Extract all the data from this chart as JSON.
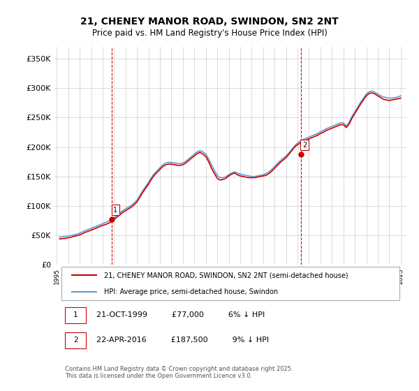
{
  "title": "21, CHENEY MANOR ROAD, SWINDON, SN2 2NT",
  "subtitle": "Price paid vs. HM Land Registry's House Price Index (HPI)",
  "legend_property": "21, CHENEY MANOR ROAD, SWINDON, SN2 2NT (semi-detached house)",
  "legend_hpi": "HPI: Average price, semi-detached house, Swindon",
  "footer": "Contains HM Land Registry data © Crown copyright and database right 2025.\nThis data is licensed under the Open Government Licence v3.0.",
  "ylabel": "",
  "ylim": [
    0,
    370000
  ],
  "yticks": [
    0,
    50000,
    100000,
    150000,
    200000,
    250000,
    300000,
    350000
  ],
  "ytick_labels": [
    "£0",
    "£50K",
    "£100K",
    "£150K",
    "£200K",
    "£250K",
    "£300K",
    "£350K"
  ],
  "sale1_date": 1999.81,
  "sale1_price": 77000,
  "sale1_label": "1",
  "sale2_date": 2016.31,
  "sale2_price": 187500,
  "sale2_label": "2",
  "sale1_info": "21-OCT-1999          £77,000          6% ↓ HPI",
  "sale2_info": "22-APR-2016          £187,500          9% ↓ HPI",
  "color_property": "#cc0000",
  "color_hpi": "#6699cc",
  "color_vline": "#cc0000",
  "hpi_data": {
    "years": [
      1995.25,
      1995.5,
      1995.75,
      1996.0,
      1996.25,
      1996.5,
      1996.75,
      1997.0,
      1997.25,
      1997.5,
      1997.75,
      1998.0,
      1998.25,
      1998.5,
      1998.75,
      1999.0,
      1999.25,
      1999.5,
      1999.75,
      2000.0,
      2000.25,
      2000.5,
      2000.75,
      2001.0,
      2001.25,
      2001.5,
      2001.75,
      2002.0,
      2002.25,
      2002.5,
      2002.75,
      2003.0,
      2003.25,
      2003.5,
      2003.75,
      2004.0,
      2004.25,
      2004.5,
      2004.75,
      2005.0,
      2005.25,
      2005.5,
      2005.75,
      2006.0,
      2006.25,
      2006.5,
      2006.75,
      2007.0,
      2007.25,
      2007.5,
      2007.75,
      2008.0,
      2008.25,
      2008.5,
      2008.75,
      2009.0,
      2009.25,
      2009.5,
      2009.75,
      2010.0,
      2010.25,
      2010.5,
      2010.75,
      2011.0,
      2011.25,
      2011.5,
      2011.75,
      2012.0,
      2012.25,
      2012.5,
      2012.75,
      2013.0,
      2013.25,
      2013.5,
      2013.75,
      2014.0,
      2014.25,
      2014.5,
      2014.75,
      2015.0,
      2015.25,
      2015.5,
      2015.75,
      2016.0,
      2016.25,
      2016.5,
      2016.75,
      2017.0,
      2017.25,
      2017.5,
      2017.75,
      2018.0,
      2018.25,
      2018.5,
      2018.75,
      2019.0,
      2019.25,
      2019.5,
      2019.75,
      2020.0,
      2020.25,
      2020.5,
      2020.75,
      2021.0,
      2021.25,
      2021.5,
      2021.75,
      2022.0,
      2022.25,
      2022.5,
      2022.75,
      2023.0,
      2023.25,
      2023.5,
      2023.75,
      2024.0,
      2024.25,
      2024.5,
      2024.75,
      2025.0
    ],
    "values": [
      47000,
      47500,
      48000,
      49000,
      50000,
      51000,
      52000,
      54000,
      56000,
      58500,
      60000,
      62000,
      64000,
      66000,
      68000,
      70000,
      72000,
      74000,
      77000,
      80000,
      84000,
      88000,
      92000,
      95000,
      98000,
      101000,
      105000,
      110000,
      118000,
      126000,
      133000,
      140000,
      148000,
      155000,
      160000,
      165000,
      170000,
      173000,
      174000,
      174000,
      173000,
      172000,
      172000,
      173000,
      176000,
      180000,
      184000,
      188000,
      192000,
      194000,
      192000,
      188000,
      180000,
      170000,
      160000,
      152000,
      148000,
      148000,
      150000,
      153000,
      156000,
      158000,
      156000,
      154000,
      153000,
      152000,
      151000,
      150000,
      150000,
      151000,
      152000,
      153000,
      155000,
      158000,
      162000,
      167000,
      172000,
      177000,
      181000,
      185000,
      190000,
      196000,
      202000,
      207000,
      210000,
      213000,
      215000,
      217000,
      219000,
      221000,
      223000,
      226000,
      228000,
      231000,
      233000,
      235000,
      237000,
      239000,
      241000,
      241000,
      236000,
      242000,
      252000,
      260000,
      268000,
      276000,
      283000,
      290000,
      294000,
      295000,
      293000,
      290000,
      287000,
      285000,
      284000,
      283000,
      283000,
      284000,
      285000,
      287000
    ]
  },
  "property_data": {
    "years": [
      1995.25,
      1995.5,
      1995.75,
      1996.0,
      1996.25,
      1996.5,
      1996.75,
      1997.0,
      1997.25,
      1997.5,
      1997.75,
      1998.0,
      1998.25,
      1998.5,
      1998.75,
      1999.0,
      1999.25,
      1999.5,
      1999.75,
      2000.0,
      2000.25,
      2000.5,
      2000.75,
      2001.0,
      2001.25,
      2001.5,
      2001.75,
      2002.0,
      2002.25,
      2002.5,
      2002.75,
      2003.0,
      2003.25,
      2003.5,
      2003.75,
      2004.0,
      2004.25,
      2004.5,
      2004.75,
      2005.0,
      2005.25,
      2005.5,
      2005.75,
      2006.0,
      2006.25,
      2006.5,
      2006.75,
      2007.0,
      2007.25,
      2007.5,
      2007.75,
      2008.0,
      2008.25,
      2008.5,
      2008.75,
      2009.0,
      2009.25,
      2009.5,
      2009.75,
      2010.0,
      2010.25,
      2010.5,
      2010.75,
      2011.0,
      2011.25,
      2011.5,
      2011.75,
      2012.0,
      2012.25,
      2012.5,
      2012.75,
      2013.0,
      2013.25,
      2013.5,
      2013.75,
      2014.0,
      2014.25,
      2014.5,
      2014.75,
      2015.0,
      2015.25,
      2015.5,
      2015.75,
      2016.0,
      2016.25,
      2016.5,
      2016.75,
      2017.0,
      2017.25,
      2017.5,
      2017.75,
      2018.0,
      2018.25,
      2018.5,
      2018.75,
      2019.0,
      2019.25,
      2019.5,
      2019.75,
      2020.0,
      2020.25,
      2020.5,
      2020.75,
      2021.0,
      2021.25,
      2021.5,
      2021.75,
      2022.0,
      2022.25,
      2022.5,
      2022.75,
      2023.0,
      2023.25,
      2023.5,
      2023.75,
      2024.0,
      2024.25,
      2024.5,
      2024.75,
      2025.0
    ],
    "values": [
      44000,
      44500,
      45000,
      46000,
      47000,
      48500,
      49500,
      51000,
      53000,
      55500,
      57000,
      59000,
      61000,
      63000,
      65000,
      67000,
      68500,
      70500,
      73000,
      77000,
      81000,
      85000,
      89000,
      92000,
      95000,
      98000,
      102000,
      107000,
      115000,
      123000,
      130000,
      137000,
      145000,
      152000,
      157000,
      162000,
      167000,
      170000,
      171000,
      171000,
      170000,
      169000,
      169000,
      170000,
      173000,
      177000,
      181000,
      185000,
      189000,
      191000,
      188000,
      184000,
      175000,
      164000,
      155000,
      147000,
      144000,
      145000,
      147000,
      151000,
      154000,
      156000,
      153000,
      151000,
      150000,
      149000,
      148000,
      148000,
      148000,
      149000,
      150000,
      151000,
      152000,
      155000,
      159000,
      164000,
      169000,
      174000,
      178000,
      182000,
      188000,
      194000,
      200000,
      204000,
      207000,
      210000,
      212000,
      214000,
      216000,
      218000,
      220000,
      223000,
      225000,
      228000,
      230000,
      232000,
      234000,
      236000,
      238000,
      238000,
      233000,
      239000,
      249000,
      257000,
      265000,
      273000,
      280000,
      287000,
      291000,
      292000,
      290000,
      287000,
      284000,
      281000,
      280000,
      279000,
      280000,
      281000,
      282000,
      283000
    ]
  }
}
